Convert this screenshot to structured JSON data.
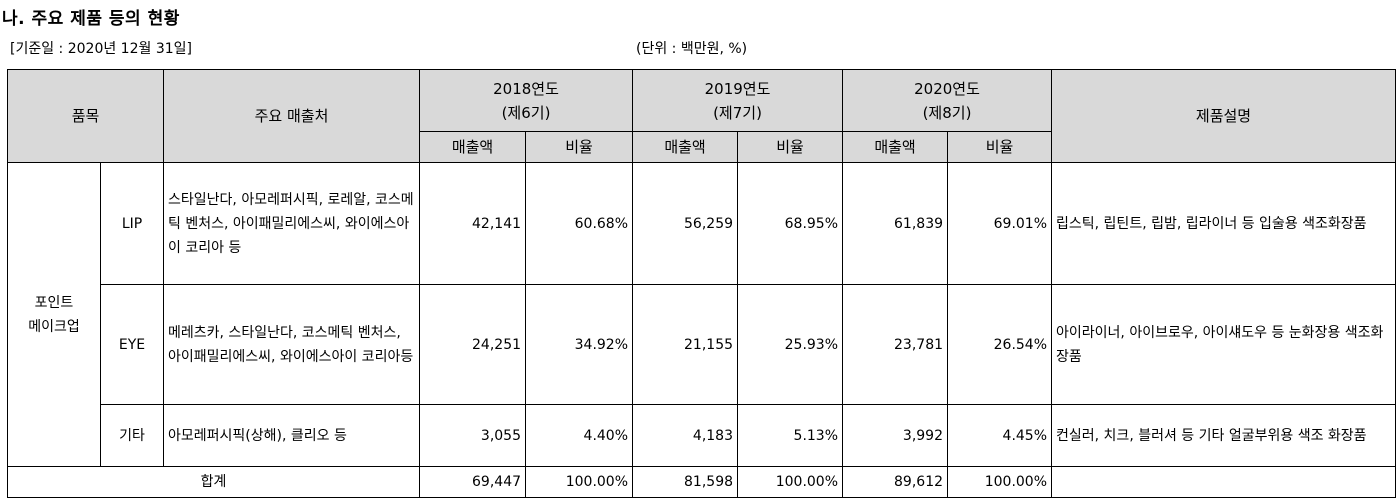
{
  "section_title": "나. 주요 제품 등의 현황",
  "base_date": "[기준일 : 2020년 12월 31일]",
  "unit": "(단위 : 백만원, %)",
  "table": {
    "headers": {
      "item": "품목",
      "customers": "주요 매출처",
      "years": [
        {
          "year": "2018연도",
          "term": "(제6기)"
        },
        {
          "year": "2019연도",
          "term": "(제7기)"
        },
        {
          "year": "2020연도",
          "term": "(제8기)"
        }
      ],
      "sales": "매출액",
      "ratio": "비율",
      "description": "제품설명"
    },
    "category": "포인트\n메이크업",
    "rows": [
      {
        "sub": "LIP",
        "customers": "스타일난다, 아모레퍼시픽, 로레알, 코스메틱 벤처스, 아이패밀리에스씨, 와이에스아이 코리아 등",
        "values": [
          "42,141",
          "60.68%",
          "56,259",
          "68.95%",
          "61,839",
          "69.01%"
        ],
        "description": "립스틱, 립틴트, 립밤, 립라이너 등 입술용 색조화장품"
      },
      {
        "sub": "EYE",
        "customers": "메레츠카, 스타일난다,  코스메틱 벤처스, 아이패밀리에스씨, 와이에스아이 코리아등",
        "values": [
          "24,251",
          "34.92%",
          "21,155",
          "25.93%",
          "23,781",
          "26.54%"
        ],
        "description": "아이라이너, 아이브로우, 아이섀도우 등 눈화장용 색조화장품"
      },
      {
        "sub": "기타",
        "customers": "아모레퍼시픽(상해), 클리오 등",
        "values": [
          "3,055",
          "4.40%",
          "4,183",
          "5.13%",
          "3,992",
          "4.45%"
        ],
        "description": "컨실러, 치크, 블러셔 등 기타 얼굴부위용 색조 화장품"
      }
    ],
    "total": {
      "label": "합계",
      "values": [
        "69,447",
        "100.00%",
        "81,598",
        "100.00%",
        "89,612",
        "100.00%"
      ],
      "description": ""
    }
  }
}
